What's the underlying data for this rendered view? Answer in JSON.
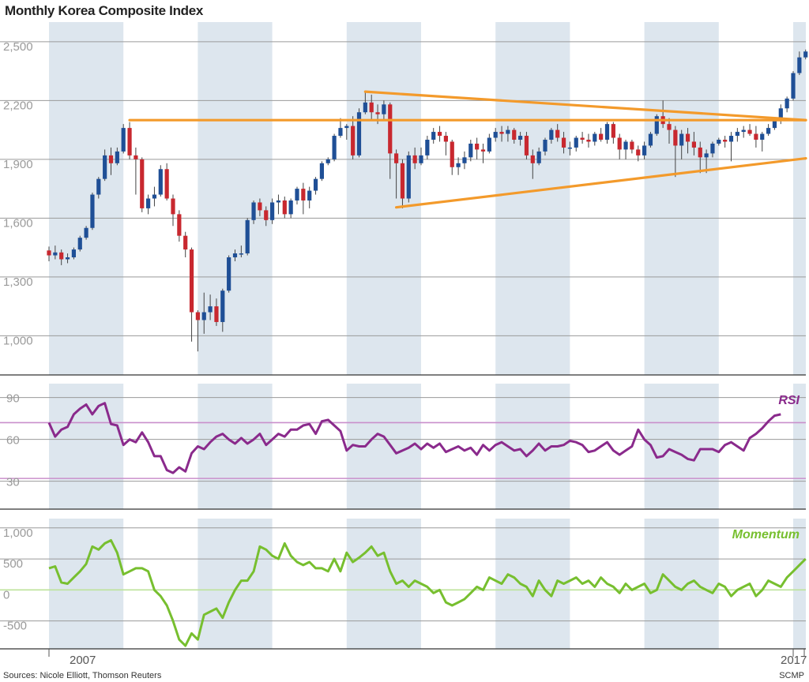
{
  "header": {
    "title": "Monthly Korea Composite Index"
  },
  "footer": {
    "source": "Sources: Nicole Elliott, Thomson Reuters",
    "credit": "SCMP"
  },
  "colors": {
    "band": "#dde6ee",
    "up": "#1f4f96",
    "down": "#c8282f",
    "trendline": "#f39a2b",
    "rsi": "#8a2a8c",
    "rsi_ref": "#c98fcb",
    "momentum": "#77bf2f",
    "momentum_ref": "#bde39a",
    "grid": "#9a9a9a"
  },
  "chart_data": [
    {
      "type": "candlestick",
      "title": "Monthly Korea Composite Index",
      "ylim": [
        800,
        2600
      ],
      "yticks": [
        1000,
        1300,
        1600,
        1900,
        2200,
        2500
      ],
      "ytick_labels": [
        "1,000",
        "1,300",
        "1,600",
        "1,900",
        "2,200",
        "2,500"
      ],
      "x_start": "2007-01",
      "x_end": "2017-03",
      "xtick_labels": [
        {
          "label": "2007",
          "index": 0
        },
        {
          "label": "2017",
          "index": 120
        }
      ],
      "shaded_years": [
        2007,
        2009,
        2011,
        2013,
        2015,
        2017
      ],
      "candles": [
        [
          1435,
          1410,
          1455,
          1380
        ],
        [
          1410,
          1425,
          1460,
          1390
        ],
        [
          1425,
          1390,
          1440,
          1360
        ],
        [
          1390,
          1400,
          1420,
          1370
        ],
        [
          1400,
          1440,
          1450,
          1390
        ],
        [
          1440,
          1500,
          1510,
          1430
        ],
        [
          1500,
          1550,
          1560,
          1490
        ],
        [
          1550,
          1720,
          1730,
          1540
        ],
        [
          1720,
          1800,
          1810,
          1700
        ],
        [
          1800,
          1920,
          1950,
          1790
        ],
        [
          1920,
          1880,
          1960,
          1820
        ],
        [
          1880,
          1940,
          1960,
          1870
        ],
        [
          1940,
          2060,
          2080,
          1930
        ],
        [
          2060,
          1920,
          2090,
          1900
        ],
        [
          1920,
          1900,
          1960,
          1720
        ],
        [
          1900,
          1650,
          1910,
          1630
        ],
        [
          1650,
          1700,
          1720,
          1620
        ],
        [
          1700,
          1720,
          1760,
          1660
        ],
        [
          1720,
          1850,
          1870,
          1710
        ],
        [
          1850,
          1700,
          1880,
          1690
        ],
        [
          1700,
          1620,
          1720,
          1560
        ],
        [
          1620,
          1510,
          1640,
          1480
        ],
        [
          1510,
          1440,
          1530,
          1400
        ],
        [
          1440,
          1120,
          1450,
          970
        ],
        [
          1120,
          1080,
          1130,
          920
        ],
        [
          1080,
          1120,
          1220,
          1010
        ],
        [
          1120,
          1150,
          1210,
          1080
        ],
        [
          1150,
          1070,
          1190,
          1050
        ],
        [
          1070,
          1230,
          1240,
          1020
        ],
        [
          1230,
          1400,
          1410,
          1220
        ],
        [
          1400,
          1420,
          1440,
          1380
        ],
        [
          1420,
          1420,
          1460,
          1400
        ],
        [
          1420,
          1590,
          1600,
          1410
        ],
        [
          1590,
          1680,
          1690,
          1570
        ],
        [
          1680,
          1640,
          1700,
          1610
        ],
        [
          1640,
          1590,
          1660,
          1560
        ],
        [
          1590,
          1680,
          1700,
          1570
        ],
        [
          1680,
          1690,
          1720,
          1620
        ],
        [
          1690,
          1620,
          1710,
          1600
        ],
        [
          1620,
          1690,
          1700,
          1600
        ],
        [
          1690,
          1750,
          1760,
          1670
        ],
        [
          1750,
          1690,
          1780,
          1620
        ],
        [
          1690,
          1740,
          1760,
          1650
        ],
        [
          1740,
          1800,
          1810,
          1720
        ],
        [
          1800,
          1880,
          1890,
          1790
        ],
        [
          1880,
          1900,
          1910,
          1870
        ],
        [
          1900,
          2020,
          2030,
          1890
        ],
        [
          2020,
          2060,
          2110,
          2010
        ],
        [
          2060,
          2070,
          2080,
          2000
        ],
        [
          2070,
          1920,
          2120,
          1900
        ],
        [
          1920,
          2140,
          2160,
          1910
        ],
        [
          2140,
          2190,
          2240,
          2130
        ],
        [
          2190,
          2140,
          2230,
          2100
        ],
        [
          2140,
          2130,
          2180,
          2080
        ],
        [
          2130,
          2180,
          2200,
          2100
        ],
        [
          2180,
          1930,
          2190,
          1800
        ],
        [
          1930,
          1880,
          1950,
          1700
        ],
        [
          1880,
          1700,
          1900,
          1650
        ],
        [
          1700,
          1920,
          1940,
          1680
        ],
        [
          1920,
          1880,
          1960,
          1850
        ],
        [
          1880,
          1920,
          1960,
          1870
        ],
        [
          1920,
          2000,
          2020,
          1900
        ],
        [
          2000,
          2040,
          2060,
          1980
        ],
        [
          2040,
          2020,
          2070,
          1990
        ],
        [
          2020,
          1990,
          2040,
          1920
        ],
        [
          1990,
          1860,
          2000,
          1820
        ],
        [
          1860,
          1880,
          1910,
          1820
        ],
        [
          1880,
          1910,
          1940,
          1850
        ],
        [
          1910,
          1980,
          2000,
          1890
        ],
        [
          1980,
          1950,
          2010,
          1900
        ],
        [
          1950,
          1940,
          1980,
          1880
        ],
        [
          1940,
          2010,
          2030,
          1930
        ],
        [
          2010,
          2040,
          2060,
          1990
        ],
        [
          2040,
          2030,
          2070,
          1990
        ],
        [
          2030,
          2050,
          2070,
          1990
        ],
        [
          2050,
          2000,
          2060,
          1980
        ],
        [
          2000,
          2020,
          2040,
          1970
        ],
        [
          2020,
          1920,
          2040,
          1900
        ],
        [
          1920,
          1880,
          1950,
          1800
        ],
        [
          1880,
          1940,
          1960,
          1870
        ],
        [
          1940,
          2000,
          2010,
          1920
        ],
        [
          2000,
          2050,
          2060,
          1980
        ],
        [
          2050,
          2010,
          2080,
          1990
        ],
        [
          2010,
          1960,
          2040,
          1930
        ],
        [
          1960,
          1960,
          1990,
          1920
        ],
        [
          1960,
          2010,
          2020,
          1940
        ],
        [
          2010,
          2000,
          2040,
          1980
        ],
        [
          2000,
          1990,
          2030,
          1960
        ],
        [
          1990,
          2030,
          2040,
          1970
        ],
        [
          2030,
          2000,
          2060,
          1990
        ],
        [
          2000,
          2080,
          2090,
          1980
        ],
        [
          2080,
          2010,
          2090,
          1980
        ],
        [
          2010,
          1950,
          2030,
          1900
        ],
        [
          1950,
          1990,
          2000,
          1900
        ],
        [
          1990,
          1950,
          2000,
          1930
        ],
        [
          1950,
          1920,
          1970,
          1890
        ],
        [
          1920,
          1970,
          1990,
          1900
        ],
        [
          1970,
          2030,
          2040,
          1960
        ],
        [
          2030,
          2120,
          2130,
          2020
        ],
        [
          2120,
          2080,
          2200,
          2060
        ],
        [
          2080,
          2050,
          2110,
          1980
        ],
        [
          2050,
          1970,
          2070,
          1810
        ],
        [
          1970,
          2030,
          2050,
          1900
        ],
        [
          2030,
          1990,
          2060,
          1930
        ],
        [
          1990,
          1960,
          2040,
          1920
        ],
        [
          1960,
          1910,
          1990,
          1830
        ],
        [
          1910,
          1930,
          1950,
          1830
        ],
        [
          1930,
          1980,
          1990,
          1910
        ],
        [
          1980,
          2000,
          2010,
          1970
        ],
        [
          2000,
          1990,
          2020,
          1960
        ],
        [
          1990,
          2020,
          2040,
          1890
        ],
        [
          2020,
          2040,
          2060,
          1990
        ],
        [
          2040,
          2050,
          2070,
          2010
        ],
        [
          2050,
          2030,
          2080,
          2020
        ],
        [
          2030,
          2000,
          2070,
          1960
        ],
        [
          2000,
          2030,
          2040,
          1940
        ],
        [
          2030,
          2060,
          2080,
          2020
        ],
        [
          2060,
          2100,
          2110,
          2050
        ],
        [
          2100,
          2160,
          2180,
          2080
        ],
        [
          2160,
          2210,
          2220,
          2140
        ],
        [
          2210,
          2340,
          2350,
          2200
        ],
        [
          2340,
          2420,
          2450,
          2330
        ],
        [
          2420,
          2450,
          2460,
          2410
        ]
      ],
      "trendlines": [
        {
          "from": [
            13,
            2100
          ],
          "to": [
            124,
            2100
          ]
        },
        {
          "from": [
            51,
            2245
          ],
          "to": [
            124,
            2100
          ]
        },
        {
          "from": [
            56,
            1655
          ],
          "to": [
            124,
            1905
          ]
        }
      ]
    },
    {
      "type": "line",
      "name": "RSI",
      "label": "RSI",
      "ylim": [
        10,
        100
      ],
      "yticks": [
        30,
        60,
        90
      ],
      "reference_lines": [
        32,
        72
      ],
      "values": [
        72,
        62,
        67,
        69,
        78,
        82,
        85,
        78,
        84,
        86,
        71,
        70,
        56,
        60,
        58,
        65,
        58,
        48,
        48,
        38,
        36,
        40,
        37,
        50,
        55,
        53,
        58,
        62,
        64,
        60,
        57,
        61,
        57,
        60,
        64,
        56,
        60,
        64,
        62,
        67,
        67,
        70,
        71,
        64,
        73,
        74,
        70,
        66,
        52,
        56,
        55,
        55,
        60,
        64,
        62,
        56,
        50,
        52,
        54,
        57,
        53,
        57,
        54,
        57,
        51,
        53,
        55,
        52,
        54,
        49,
        56,
        52,
        56,
        58,
        55,
        52,
        53,
        48,
        52,
        57,
        52,
        55,
        55,
        56,
        59,
        58,
        56,
        51,
        52,
        55,
        58,
        52,
        49,
        52,
        55,
        67,
        60,
        56,
        47,
        48,
        53,
        51,
        49,
        46,
        45,
        53,
        53,
        53,
        51,
        56,
        58,
        55,
        52,
        61,
        64,
        68,
        73,
        77,
        78
      ]
    },
    {
      "type": "line",
      "name": "Momentum",
      "label": "Momentum",
      "ylim": [
        -950,
        1150
      ],
      "yticks": [
        -500,
        0,
        500,
        1000
      ],
      "ytick_labels": [
        "-500",
        "0",
        "500",
        "1,000"
      ],
      "reference_lines": [
        0
      ],
      "values": [
        350,
        380,
        120,
        100,
        200,
        300,
        420,
        700,
        650,
        750,
        800,
        600,
        250,
        300,
        350,
        350,
        300,
        0,
        -100,
        -250,
        -500,
        -800,
        -900,
        -700,
        -800,
        -400,
        -350,
        -300,
        -450,
        -200,
        0,
        150,
        150,
        300,
        700,
        650,
        550,
        500,
        750,
        550,
        450,
        400,
        450,
        350,
        350,
        300,
        500,
        300,
        600,
        450,
        520,
        600,
        700,
        550,
        600,
        300,
        100,
        150,
        50,
        150,
        100,
        50,
        -50,
        0,
        -200,
        -250,
        -200,
        -150,
        -50,
        50,
        0,
        200,
        150,
        100,
        250,
        200,
        100,
        50,
        -100,
        150,
        0,
        -100,
        150,
        100,
        150,
        200,
        100,
        150,
        50,
        200,
        100,
        50,
        -50,
        100,
        0,
        50,
        100,
        -50,
        0,
        250,
        150,
        50,
        0,
        100,
        150,
        50,
        0,
        -50,
        100,
        50,
        -100,
        0,
        50,
        100,
        -100,
        0,
        150,
        100,
        50,
        200,
        300,
        400,
        500
      ]
    }
  ]
}
